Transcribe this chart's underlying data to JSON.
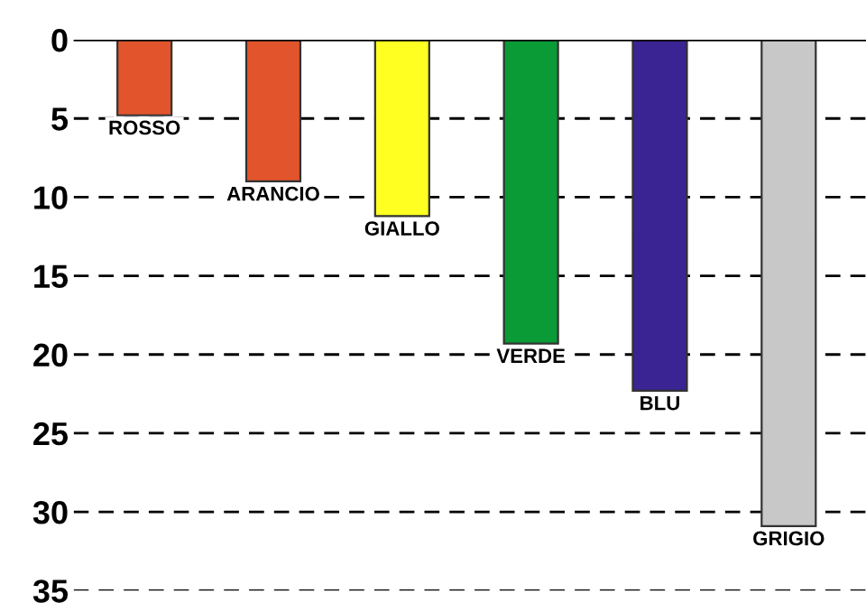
{
  "chart_data": {
    "type": "bar",
    "categories": [
      "ROSSO",
      "ARANCIO",
      "GIALLO",
      "VERDE",
      "BLU",
      "GRIGIO"
    ],
    "values": [
      4.8,
      9.0,
      11.2,
      19.3,
      22.3,
      30.9
    ],
    "colors": [
      "#e2552c",
      "#e2552c",
      "#ffff22",
      "#0a9a36",
      "#3a2392",
      "#c8c8c8"
    ],
    "ylim": [
      35,
      0
    ],
    "yticks": [
      0,
      5,
      10,
      15,
      20,
      25,
      30,
      35
    ],
    "grid": "y",
    "line_style": "dashed"
  }
}
